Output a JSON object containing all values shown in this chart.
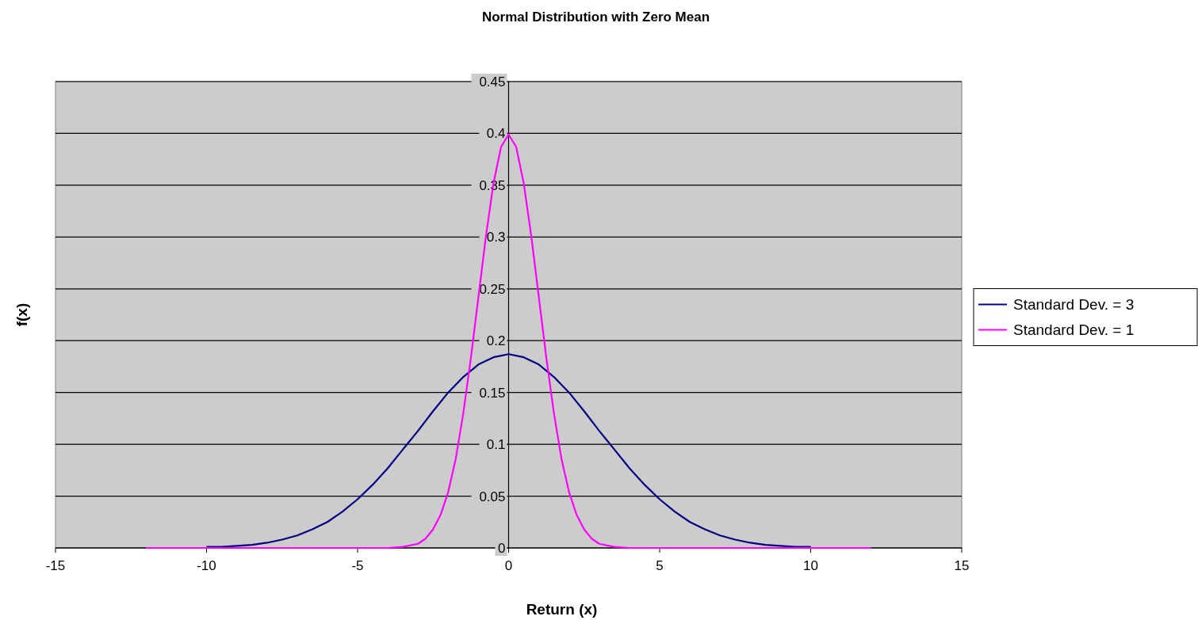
{
  "chart_data": {
    "type": "line",
    "title": "Normal Distribution with Zero Mean",
    "xlabel": "Return (x)",
    "ylabel": "f(x)",
    "xlim": [
      -15,
      15
    ],
    "xticks": [
      -15,
      -10,
      -5,
      0,
      5,
      10,
      15
    ],
    "ylim": [
      0,
      0.45
    ],
    "yticks": [
      0,
      0.05,
      0.1,
      0.15,
      0.2,
      0.25,
      0.3,
      0.35,
      0.4,
      0.45
    ],
    "grid": "y",
    "legend": "right",
    "marker": "none",
    "line_style": "solid",
    "series": [
      {
        "name": "Standard Dev. = 3",
        "color": "#000080",
        "x": [
          -10,
          -9.5,
          -9,
          -8.5,
          -8,
          -7.5,
          -7,
          -6.5,
          -6,
          -5.5,
          -5,
          -4.5,
          -4,
          -3.5,
          -3,
          -2.5,
          -2,
          -1.5,
          -1,
          -0.5,
          0,
          0.5,
          1,
          1.5,
          2,
          2.5,
          3,
          3.5,
          4,
          4.5,
          5,
          5.5,
          6,
          6.5,
          7,
          7.5,
          8,
          8.5,
          9,
          9.5,
          10
        ],
        "values": [
          0.001,
          0.001,
          0.002,
          0.003,
          0.005,
          0.008,
          0.012,
          0.018,
          0.025,
          0.035,
          0.047,
          0.061,
          0.077,
          0.095,
          0.113,
          0.132,
          0.15,
          0.165,
          0.177,
          0.184,
          0.187,
          0.184,
          0.177,
          0.165,
          0.15,
          0.132,
          0.113,
          0.095,
          0.077,
          0.061,
          0.047,
          0.035,
          0.025,
          0.018,
          0.012,
          0.008,
          0.005,
          0.003,
          0.002,
          0.001,
          0.001
        ]
      },
      {
        "name": "Standard Dev. = 1",
        "color": "#ff00ff",
        "x": [
          -12,
          -4,
          -3.5,
          -3,
          -2.75,
          -2.5,
          -2.25,
          -2,
          -1.75,
          -1.5,
          -1.25,
          -1,
          -0.75,
          -0.5,
          -0.25,
          0,
          0.25,
          0.5,
          0.75,
          1,
          1.25,
          1.5,
          1.75,
          2,
          2.25,
          2.5,
          2.75,
          3,
          3.5,
          4,
          12
        ],
        "values": [
          0,
          0,
          0.001,
          0.004,
          0.009,
          0.018,
          0.032,
          0.054,
          0.086,
          0.13,
          0.183,
          0.242,
          0.301,
          0.352,
          0.387,
          0.399,
          0.387,
          0.352,
          0.301,
          0.242,
          0.183,
          0.13,
          0.086,
          0.054,
          0.032,
          0.018,
          0.009,
          0.004,
          0.001,
          0,
          0
        ]
      }
    ]
  }
}
